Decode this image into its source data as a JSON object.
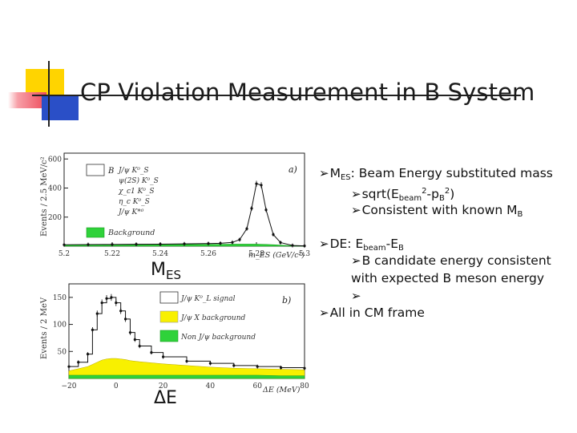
{
  "title": "CP Violation Measurement in B System",
  "plot_a": {
    "ylabel": "Events / 2.5 MeV/c²",
    "yticks": [
      "200",
      "400",
      "600"
    ],
    "xticks": [
      "5.2",
      "5.22",
      "5.24",
      "5.26",
      "5.28",
      "5.3"
    ],
    "xlabel": "m_ES (GeV/c²)",
    "panel_tag": "a)",
    "legend": [
      "J/ψ K⁰_S",
      "ψ(2S) K⁰_S",
      "χ_c1 K⁰_S",
      "η_c K⁰_S",
      "J/ψ K*⁰",
      "Background"
    ],
    "legend_prefix": "B"
  },
  "plot_b": {
    "ylabel": "Events / 2 MeV",
    "yticks": [
      "50",
      "100",
      "150"
    ],
    "xticks": [
      "−20",
      "0",
      "20",
      "40",
      "60",
      "80"
    ],
    "xlabel": "ΔE (MeV)",
    "panel_tag": "b)",
    "legend": [
      "J/ψ K⁰_L signal",
      "J/ψ X background",
      "Non J/ψ background"
    ]
  },
  "labels": {
    "mes": "M",
    "mes_sub": "ES",
    "de": "ΔE"
  },
  "bullets": {
    "b1_pre": "M",
    "b1_sub": "ES",
    "b1_post": ": Beam Energy substituted mass",
    "b1a_pre": "sqrt(E",
    "b1a_sub": "beam",
    "b1a_sup1": "2",
    "b1a_mid": "-p",
    "b1a_sub2": "B",
    "b1a_sup2": "2",
    "b1a_post": ")",
    "b1b_pre": "Consistent with known M",
    "b1b_sub": "B",
    "b2_pre": "DE: E",
    "b2_sub": "beam",
    "b2_mid": "-E",
    "b2_sub2": "B",
    "b2a_line1": "B candidate energy consistent",
    "b2a_line2": "with expected B meson energy",
    "b3": "All in CM frame"
  },
  "chart_data": [
    {
      "type": "area",
      "title": "a)",
      "xlabel": "m_ES (GeV/c²)",
      "ylabel": "Events / 2.5 MeV/c²",
      "xlim": [
        5.2,
        5.3
      ],
      "ylim": [
        0,
        640
      ],
      "x": [
        5.2,
        5.21,
        5.22,
        5.23,
        5.24,
        5.25,
        5.26,
        5.265,
        5.27,
        5.273,
        5.276,
        5.278,
        5.28,
        5.282,
        5.284,
        5.287,
        5.29,
        5.295,
        5.3
      ],
      "series": [
        {
          "name": "B",
          "values": [
            10,
            11,
            12,
            13,
            14,
            16,
            18,
            20,
            26,
            45,
            120,
            260,
            430,
            420,
            250,
            80,
            25,
            5,
            2
          ]
        },
        {
          "name": "Background",
          "values": [
            8,
            9,
            10,
            10,
            11,
            12,
            13,
            13,
            14,
            14,
            14,
            14,
            14,
            13,
            12,
            10,
            7,
            3,
            1
          ]
        }
      ]
    },
    {
      "type": "area",
      "title": "b)",
      "xlabel": "ΔE (MeV)",
      "ylabel": "Events / 2 MeV",
      "xlim": [
        -20,
        80
      ],
      "ylim": [
        0,
        175
      ],
      "x": [
        -20,
        -16,
        -12,
        -10,
        -8,
        -6,
        -4,
        -2,
        0,
        2,
        4,
        6,
        8,
        10,
        15,
        20,
        30,
        40,
        50,
        60,
        70,
        80
      ],
      "series": [
        {
          "name": "J/ψ K⁰_L signal",
          "values": [
            22,
            30,
            45,
            90,
            120,
            140,
            148,
            150,
            140,
            125,
            110,
            85,
            72,
            60,
            48,
            40,
            32,
            28,
            24,
            22,
            20,
            19
          ]
        },
        {
          "name": "J/ψ X background",
          "values": [
            14,
            18,
            22,
            26,
            30,
            34,
            36,
            37,
            37,
            36,
            35,
            33,
            32,
            31,
            29,
            27,
            24,
            21,
            19,
            18,
            17,
            16
          ]
        },
        {
          "name": "Non J/ψ background",
          "values": [
            6,
            6,
            6,
            6,
            6,
            6,
            6,
            6,
            6,
            6,
            6,
            6,
            6,
            6,
            6,
            6,
            6,
            6,
            6,
            6,
            5,
            5
          ]
        }
      ]
    }
  ]
}
